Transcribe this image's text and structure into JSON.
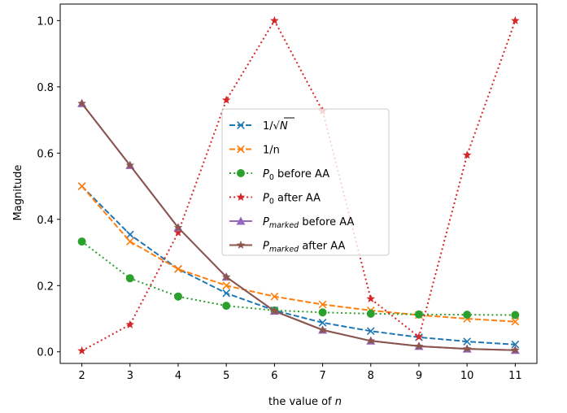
{
  "chart_data": {
    "type": "line",
    "x": [
      2,
      3,
      4,
      5,
      6,
      7,
      8,
      9,
      10,
      11
    ],
    "xlabel": "the value of n",
    "xlabel_plain": "the value of ",
    "xlabel_var": "n",
    "ylabel": "Magnitude",
    "xlim": [
      1.55,
      11.45
    ],
    "ylim": [
      -0.035,
      1.05
    ],
    "xticks": [
      "2",
      "3",
      "4",
      "5",
      "6",
      "7",
      "8",
      "9",
      "10",
      "11"
    ],
    "yticks": [
      "0.0",
      "0.2",
      "0.4",
      "0.6",
      "0.8",
      "1.0"
    ],
    "ytick_values": [
      0.0,
      0.2,
      0.4,
      0.6,
      0.8,
      1.0
    ],
    "grid": false,
    "legend_position": "center",
    "series": [
      {
        "name": "1/√N",
        "label_main": "1/√",
        "label_sub": "",
        "label_var": "N",
        "label_suffix": "",
        "color": "#1f77b4",
        "linestyle": "dashed",
        "marker": "x",
        "values": [
          0.5,
          0.354,
          0.25,
          0.177,
          0.125,
          0.088,
          0.0625,
          0.044,
          0.031,
          0.022
        ]
      },
      {
        "name": "1/n",
        "label_main": "1/n",
        "label_sub": "",
        "label_var": "",
        "label_suffix": "",
        "color": "#ff7f0e",
        "linestyle": "dashed",
        "marker": "x",
        "values": [
          0.5,
          0.333,
          0.25,
          0.2,
          0.167,
          0.143,
          0.125,
          0.111,
          0.1,
          0.091
        ]
      },
      {
        "name": "P0 before AA",
        "label_main": "P",
        "label_sub": "0",
        "label_var": "",
        "label_suffix": " before AA",
        "color": "#2ca02c",
        "linestyle": "dotted",
        "marker": "o",
        "values": [
          0.333,
          0.222,
          0.167,
          0.139,
          0.125,
          0.119,
          0.115,
          0.113,
          0.112,
          0.111
        ]
      },
      {
        "name": "P0 after AA",
        "label_main": "P",
        "label_sub": "0",
        "label_var": "",
        "label_suffix": " after AA",
        "color": "#d62728",
        "linestyle": "dotted",
        "marker": "*",
        "values": [
          0.003,
          0.082,
          0.36,
          0.76,
          1.0,
          0.727,
          0.16,
          0.045,
          0.594,
          1.0
        ]
      },
      {
        "name": "Pmarked before AA",
        "label_main": "P",
        "label_sub": "marked",
        "label_var": "",
        "label_suffix": " before AA",
        "color": "#9467bd",
        "linestyle": "solid",
        "marker": "^",
        "values": [
          0.75,
          0.563,
          0.375,
          0.226,
          0.123,
          0.066,
          0.033,
          0.017,
          0.009,
          0.005
        ]
      },
      {
        "name": "Pmarked after AA",
        "label_main": "P",
        "label_sub": "marked",
        "label_var": "",
        "label_suffix": " after AA",
        "color": "#8c564b",
        "linestyle": "solid",
        "marker": "*",
        "values": [
          0.75,
          0.563,
          0.375,
          0.226,
          0.123,
          0.066,
          0.033,
          0.017,
          0.009,
          0.005
        ]
      }
    ]
  }
}
